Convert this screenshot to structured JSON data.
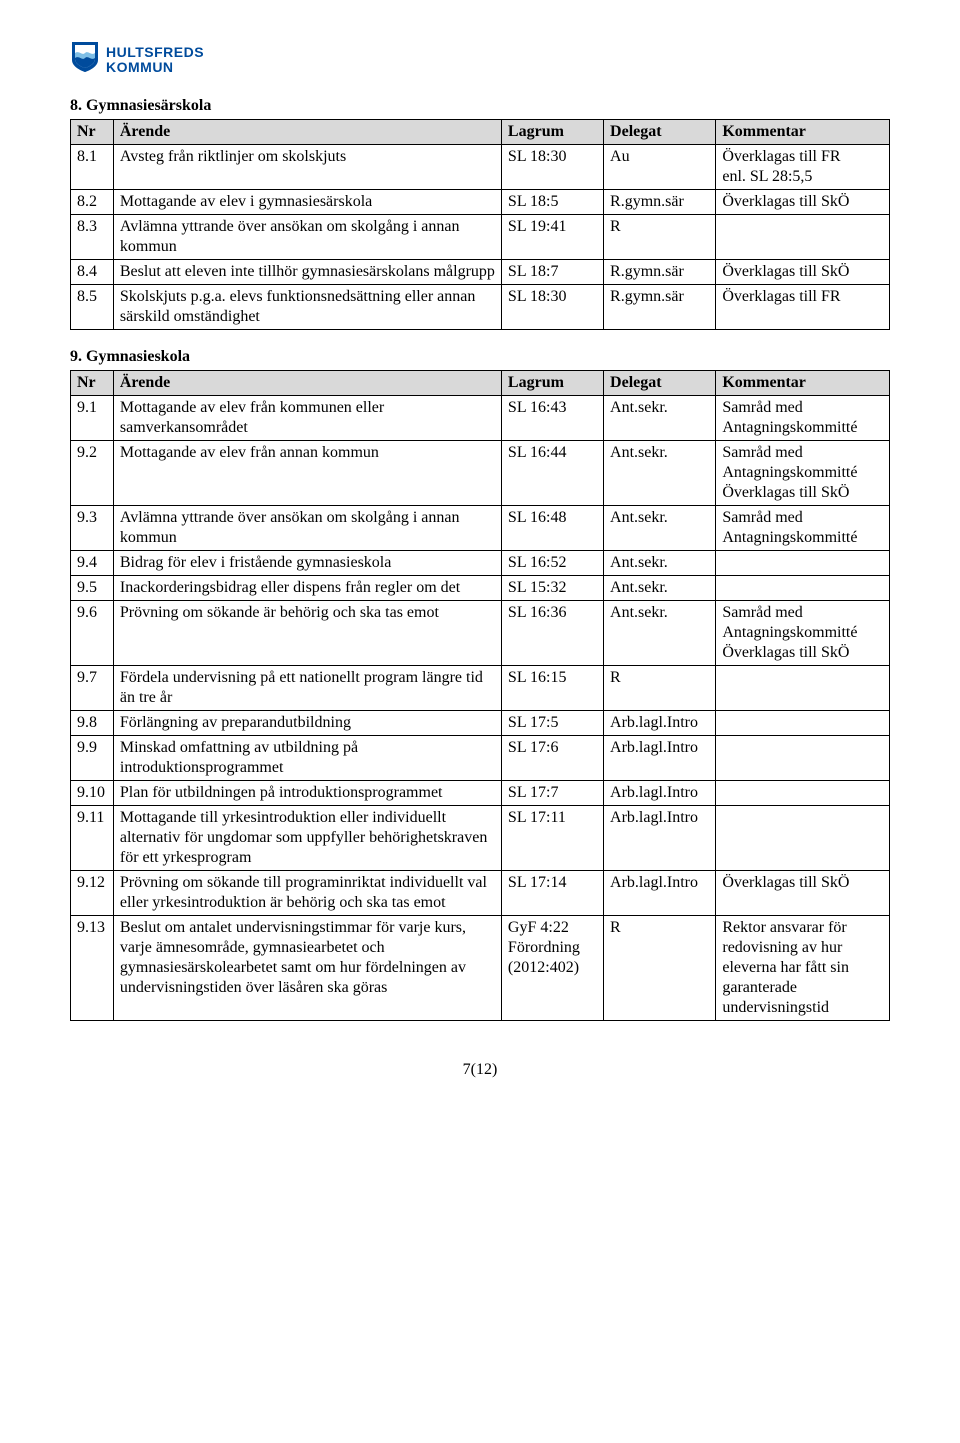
{
  "logo": {
    "line1": "HULTSFREDS",
    "line2": "KOMMUN",
    "shield_outer": "#004b9c",
    "shield_inner": "#ffffff",
    "wave": "#7fbfe6"
  },
  "section8": {
    "title": "8. Gymnasiesärskola",
    "headers": {
      "nr": "Nr",
      "arende": "Ärende",
      "lagrum": "Lagrum",
      "delegat": "Delegat",
      "kommentar": "Kommentar"
    },
    "rows": [
      {
        "nr": "8.1",
        "arende": "Avsteg från riktlinjer om skolskjuts",
        "lagrum": "SL 18:30",
        "delegat": "Au",
        "kommentar": "Överklagas till FR\nenl. SL 28:5,5"
      },
      {
        "nr": "8.2",
        "arende": "Mottagande av elev i gymnasiesärskola",
        "lagrum": "SL 18:5",
        "delegat": "R.gymn.sär",
        "kommentar": "Överklagas till SkÖ"
      },
      {
        "nr": "8.3",
        "arende": "Avlämna yttrande över ansökan om skolgång i annan kommun",
        "lagrum": "SL 19:41",
        "delegat": "R",
        "kommentar": ""
      },
      {
        "nr": "8.4",
        "arende": "Beslut att eleven inte tillhör gymnasiesärskolans målgrupp",
        "lagrum": "SL 18:7",
        "delegat": "R.gymn.sär",
        "kommentar": "Överklagas till SkÖ"
      },
      {
        "nr": "8.5",
        "arende": "Skolskjuts p.g.a. elevs funktionsnedsättning eller annan särskild omständighet",
        "lagrum": "SL 18:30",
        "delegat": "R.gymn.sär",
        "kommentar": "Överklagas till FR"
      }
    ]
  },
  "section9": {
    "title": "9. Gymnasieskola",
    "headers": {
      "nr": "Nr",
      "arende": "Ärende",
      "lagrum": "Lagrum",
      "delegat": "Delegat",
      "kommentar": "Kommentar"
    },
    "rows": [
      {
        "nr": "9.1",
        "arende": "Mottagande av elev från kommunen eller samverkansområdet",
        "lagrum": "SL 16:43",
        "delegat": "Ant.sekr.",
        "kommentar": "Samråd med Antagningskommitté"
      },
      {
        "nr": "9.2",
        "arende": "Mottagande av elev från annan kommun",
        "lagrum": "SL 16:44",
        "delegat": "Ant.sekr.",
        "kommentar": "Samråd med Antagningskommitté Överklagas till SkÖ"
      },
      {
        "nr": "9.3",
        "arende": "Avlämna yttrande över ansökan om skolgång i annan kommun",
        "lagrum": "SL 16:48",
        "delegat": "Ant.sekr.",
        "kommentar": "Samråd med Antagningskommitté"
      },
      {
        "nr": "9.4",
        "arende": "Bidrag för elev i fristående gymnasieskola",
        "lagrum": "SL 16:52",
        "delegat": "Ant.sekr.",
        "kommentar": ""
      },
      {
        "nr": "9.5",
        "arende": "Inackorderingsbidrag eller dispens från regler om det",
        "lagrum": "SL 15:32",
        "delegat": "Ant.sekr.",
        "kommentar": ""
      },
      {
        "nr": "9.6",
        "arende": "Prövning om sökande är behörig och ska tas emot",
        "lagrum": "SL 16:36",
        "delegat": "Ant.sekr.",
        "kommentar": "Samråd med Antagningskommitté Överklagas till SkÖ"
      },
      {
        "nr": "9.7",
        "arende": "Fördela undervisning på ett nationellt program längre tid än tre år",
        "lagrum": "SL 16:15",
        "delegat": "R",
        "kommentar": ""
      },
      {
        "nr": "9.8",
        "arende": "Förlängning av preparandutbildning",
        "lagrum": "SL 17:5",
        "delegat": "Arb.lagl.Intro",
        "kommentar": ""
      },
      {
        "nr": "9.9",
        "arende": "Minskad omfattning av utbildning på introduktionsprogrammet",
        "lagrum": "SL 17:6",
        "delegat": "Arb.lagl.Intro",
        "kommentar": ""
      },
      {
        "nr": "9.10",
        "arende": "Plan för utbildningen på introduktionsprogrammet",
        "lagrum": "SL 17:7",
        "delegat": "Arb.lagl.Intro",
        "kommentar": ""
      },
      {
        "nr": "9.11",
        "arende": "Mottagande till yrkesintroduktion eller individuellt alternativ för ungdomar som uppfyller behörighetskraven för ett yrkesprogram",
        "lagrum": "SL 17:11",
        "delegat": "Arb.lagl.Intro",
        "kommentar": ""
      },
      {
        "nr": "9.12",
        "arende": "Prövning om sökande till programinriktat individuellt val eller yrkesintroduktion är behörig och ska tas emot",
        "lagrum": "SL 17:14",
        "delegat": "Arb.lagl.Intro",
        "kommentar": "Överklagas till SkÖ"
      },
      {
        "nr": "9.13",
        "arende": "Beslut om antalet undervisningstimmar för varje kurs, varje ämnesområde, gymnasiearbetet och gymnasiesärskolearbetet samt om hur fördelningen av undervisningstiden över läsåren ska göras",
        "lagrum": "GyF 4:22 Förordning (2012:402)",
        "delegat": "R",
        "kommentar": "Rektor ansvarar för redovisning av hur eleverna har fått sin garanterade undervisningstid"
      }
    ]
  },
  "page_number": "7(12)"
}
